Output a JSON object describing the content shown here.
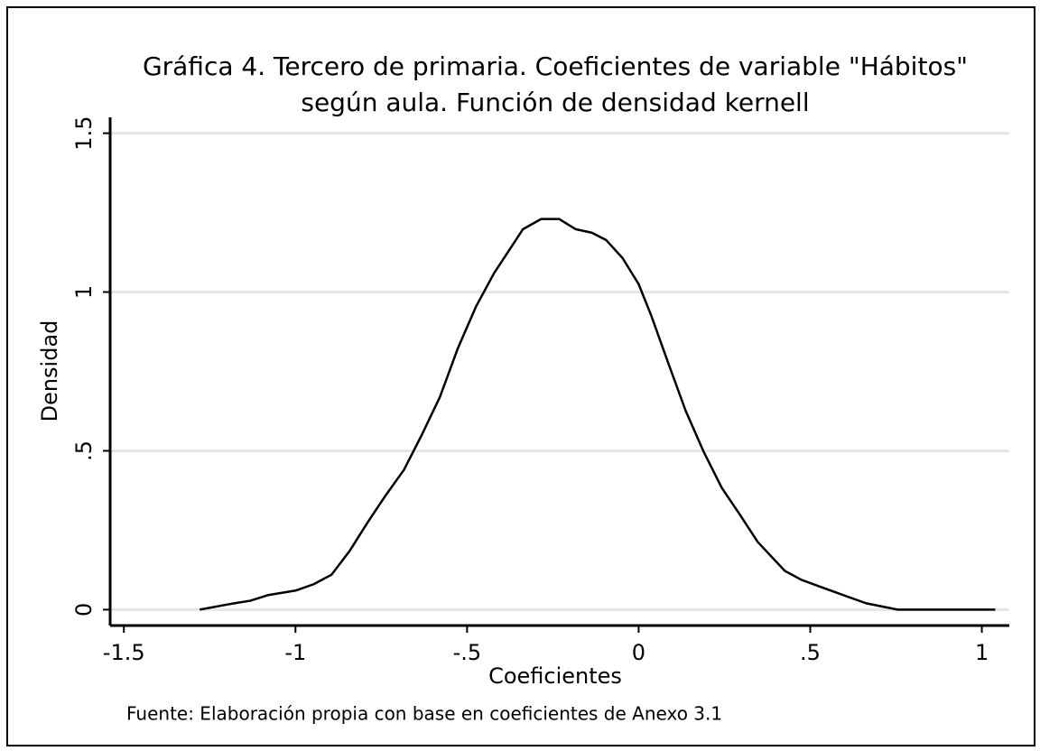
{
  "chart_data": {
    "type": "line",
    "title": [
      "Gráfica 4. Tercero de primaria. Coeficientes de variable \"Hábitos\"",
      "según aula. Función de densidad kernell"
    ],
    "xlabel": "Coeficientes",
    "ylabel": "Densidad",
    "note": "Fuente: Elaboración propia con base en coeficientes de Anexo 3.1",
    "x": [
      -1.279,
      -1.179,
      -1.132,
      -1.079,
      -1.0,
      -0.947,
      -0.895,
      -0.842,
      -0.789,
      -0.737,
      -0.684,
      -0.632,
      -0.579,
      -0.526,
      -0.474,
      -0.421,
      -0.368,
      -0.337,
      -0.284,
      -0.232,
      -0.184,
      -0.137,
      -0.095,
      -0.047,
      0.0,
      0.037,
      0.084,
      0.137,
      0.189,
      0.242,
      0.295,
      0.347,
      0.426,
      0.474,
      0.532,
      0.611,
      0.663,
      0.755,
      1.039
    ],
    "series": [
      {
        "name": "Densidad",
        "color": "#000000",
        "values": [
          0,
          0.02,
          0.028,
          0.046,
          0.06,
          0.08,
          0.11,
          0.185,
          0.276,
          0.36,
          0.44,
          0.55,
          0.67,
          0.825,
          0.954,
          1.06,
          1.147,
          1.198,
          1.23,
          1.23,
          1.198,
          1.187,
          1.164,
          1.107,
          1.025,
          0.925,
          0.783,
          0.626,
          0.498,
          0.384,
          0.299,
          0.213,
          0.122,
          0.094,
          0.071,
          0.04,
          0.02,
          0,
          0
        ]
      }
    ],
    "xlim": [
      -1.54,
      1.08
    ],
    "xticks": [
      {
        "value": -1.5,
        "label": "-1.5"
      },
      {
        "value": -1,
        "label": "-1"
      },
      {
        "value": -0.5,
        "label": "-.5"
      },
      0,
      {
        "value": 0.5,
        "label": ".5"
      },
      1
    ],
    "ylim": [
      -0.05,
      1.55
    ],
    "yticks": [
      0,
      {
        "value": 0.5,
        "label": ".5"
      },
      1,
      1.5
    ],
    "grid": true
  }
}
